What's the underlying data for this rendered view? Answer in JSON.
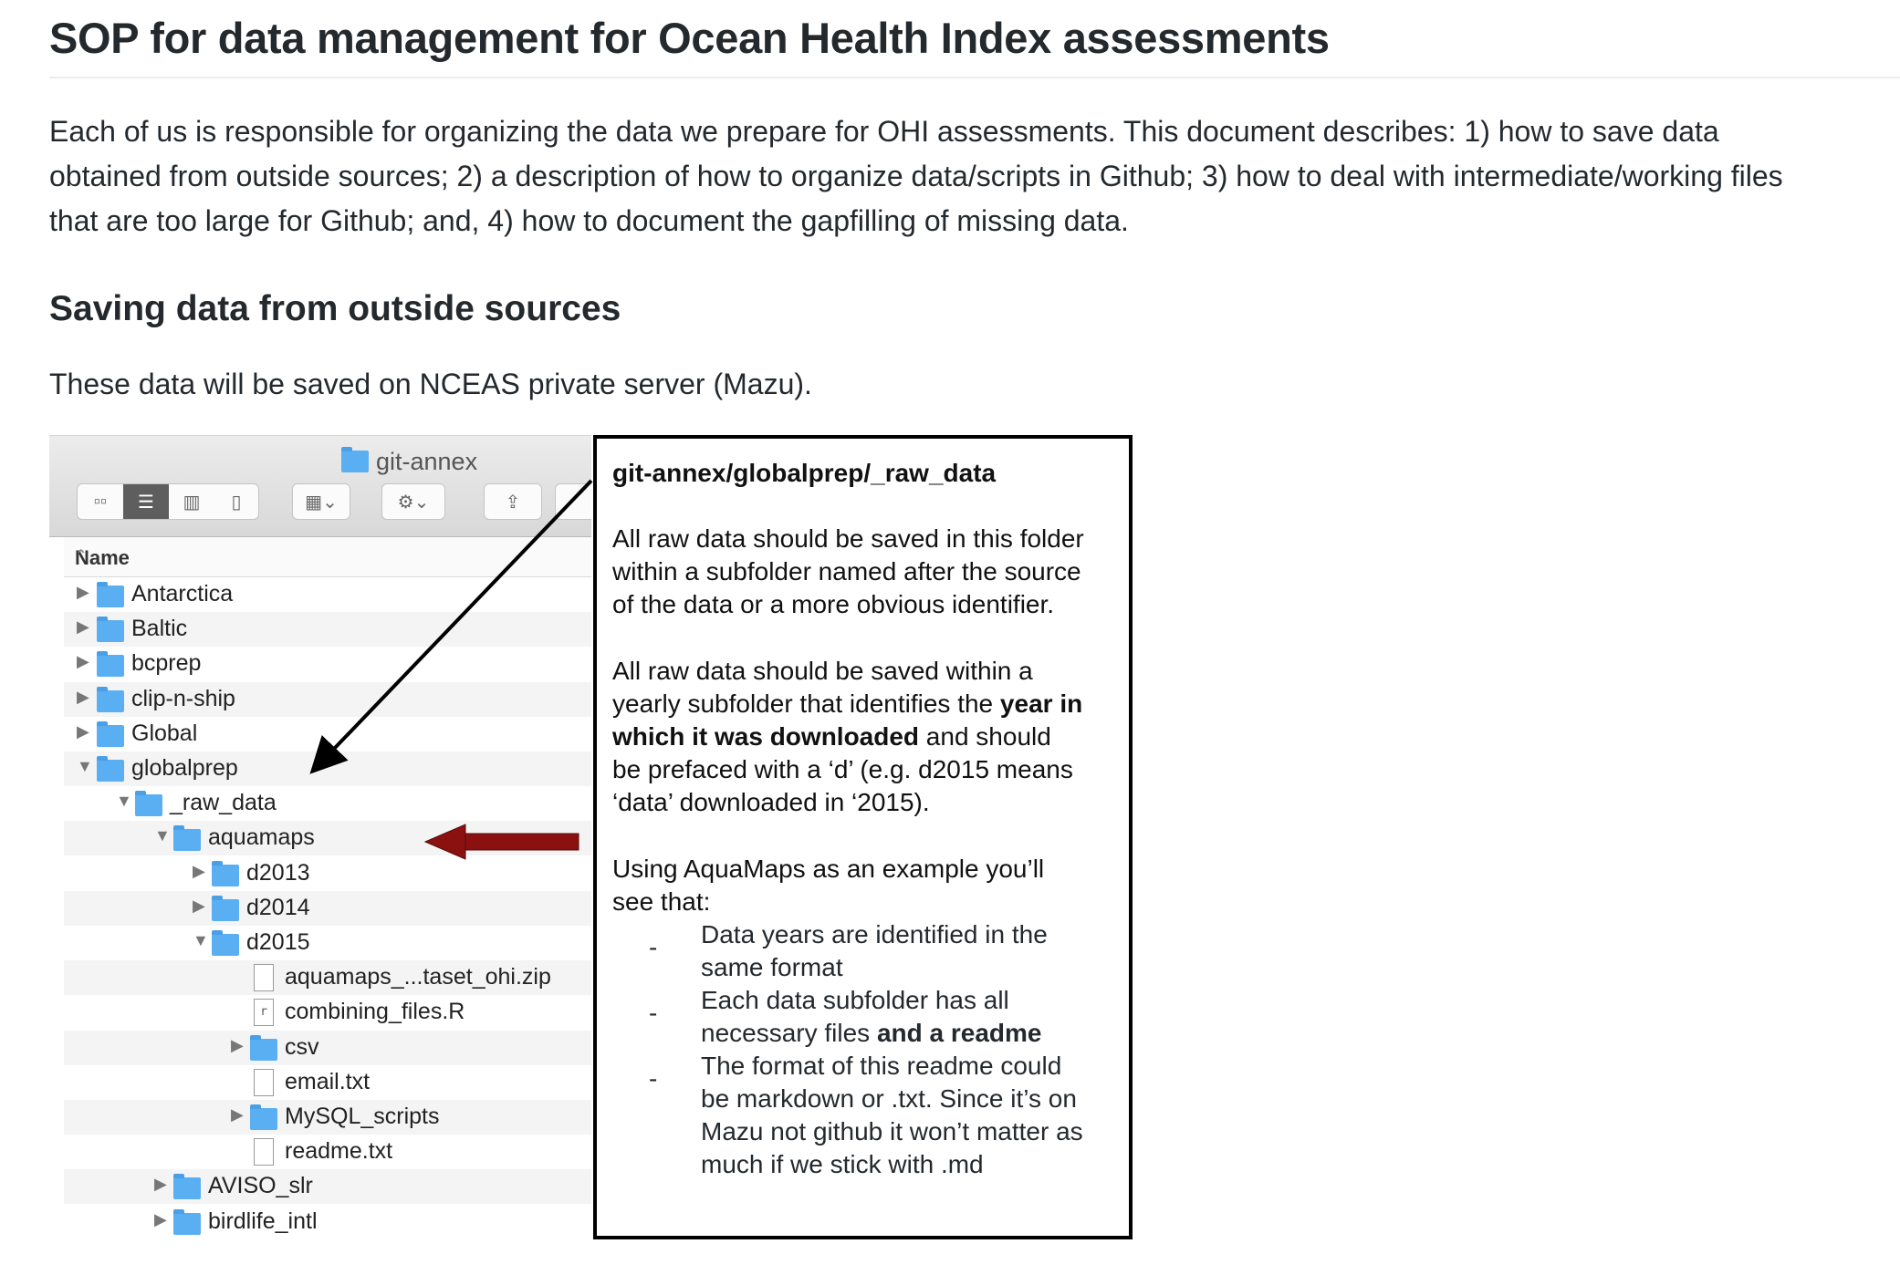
{
  "page": {
    "title": "SOP for data management for Ocean Health Index assessments",
    "intro_lines": [
      "Each of us is responsible for organizing the data we prepare for OHI assessments. This document describes: 1) how to save data",
      "obtained from outside sources; 2) a description of how to organize data/scripts in Github; 3) how to deal with intermediate/working files",
      "that are too large for Github; and, 4) how to document the gapfilling of missing data."
    ],
    "section": {
      "heading": "Saving data from outside sources",
      "paragraph": "These data will be saved on NCEAS private server (Mazu)."
    }
  },
  "finder": {
    "window_title": "git-annex",
    "column_header": "Name",
    "sort_icon": "chevron-up-icon",
    "rows": [
      {
        "label": "Antarctica",
        "type": "folder",
        "expanded": false,
        "depth": 0
      },
      {
        "label": "Baltic",
        "type": "folder",
        "expanded": false,
        "depth": 0
      },
      {
        "label": "bcprep",
        "type": "folder",
        "expanded": false,
        "depth": 0
      },
      {
        "label": "clip-n-ship",
        "type": "folder",
        "expanded": false,
        "depth": 0
      },
      {
        "label": "Global",
        "type": "folder",
        "expanded": false,
        "depth": 0
      },
      {
        "label": "globalprep",
        "type": "folder",
        "expanded": true,
        "depth": 0
      },
      {
        "label": "_raw_data",
        "type": "folder",
        "expanded": true,
        "depth": 1
      },
      {
        "label": "aquamaps",
        "type": "folder",
        "expanded": true,
        "depth": 2
      },
      {
        "label": "d2013",
        "type": "folder",
        "expanded": false,
        "depth": 3
      },
      {
        "label": "d2014",
        "type": "folder",
        "expanded": false,
        "depth": 3
      },
      {
        "label": "d2015",
        "type": "folder",
        "expanded": true,
        "depth": 3
      },
      {
        "label": "aquamaps_...taset_ohi.zip",
        "type": "file",
        "glyph": "",
        "depth": 4
      },
      {
        "label": "combining_files.R",
        "type": "file",
        "glyph": "r",
        "depth": 4
      },
      {
        "label": "csv",
        "type": "folder",
        "expanded": false,
        "depth": 4
      },
      {
        "label": "email.txt",
        "type": "file",
        "glyph": "",
        "depth": 4
      },
      {
        "label": "MySQL_scripts",
        "type": "folder",
        "expanded": false,
        "depth": 4
      },
      {
        "label": "readme.txt",
        "type": "file",
        "glyph": "",
        "depth": 4
      },
      {
        "label": "AVISO_slr",
        "type": "folder",
        "expanded": false,
        "depth": 2
      },
      {
        "label": "birdlife_intl",
        "type": "folder",
        "expanded": false,
        "depth": 2
      }
    ]
  },
  "note": {
    "heading": "git-annex/globalprep/_raw_data",
    "p1_lines": [
      "All raw data should be saved in this folder",
      "within a subfolder named after the source",
      "of the data or a more obvious identifier."
    ],
    "p2": {
      "l1": "All raw data should be saved within a",
      "l2_pre": "yearly subfolder that identifies the ",
      "l2_bold": "year in",
      "l3_bold": "which it was downloaded",
      "l3_post": " and should",
      "l4": "be prefaced with a ‘d’ (e.g. d2015 means",
      "l5": "‘data’ downloaded in ‘2015)."
    },
    "p3_lines": [
      "Using AquaMaps as an example you’ll",
      "see that:"
    ],
    "bullet_dash": "-",
    "bullets": {
      "b1_l1": "Data years are identified in the",
      "b1_l2": "same format",
      "b2_l1": "Each data subfolder has all",
      "b2_l2_pre": "necessary files ",
      "b2_l2_bold": "and a readme",
      "b3_l1": "The format of this readme could",
      "b3_l2": "be markdown or .txt. Since it’s on",
      "b3_l3": "Mazu not github it won’t matter as",
      "b3_l4": "much if we stick with .md"
    }
  },
  "colors": {
    "folder": "#5aaef2",
    "red_arrow": "#8b1010",
    "text": "#24292e"
  }
}
